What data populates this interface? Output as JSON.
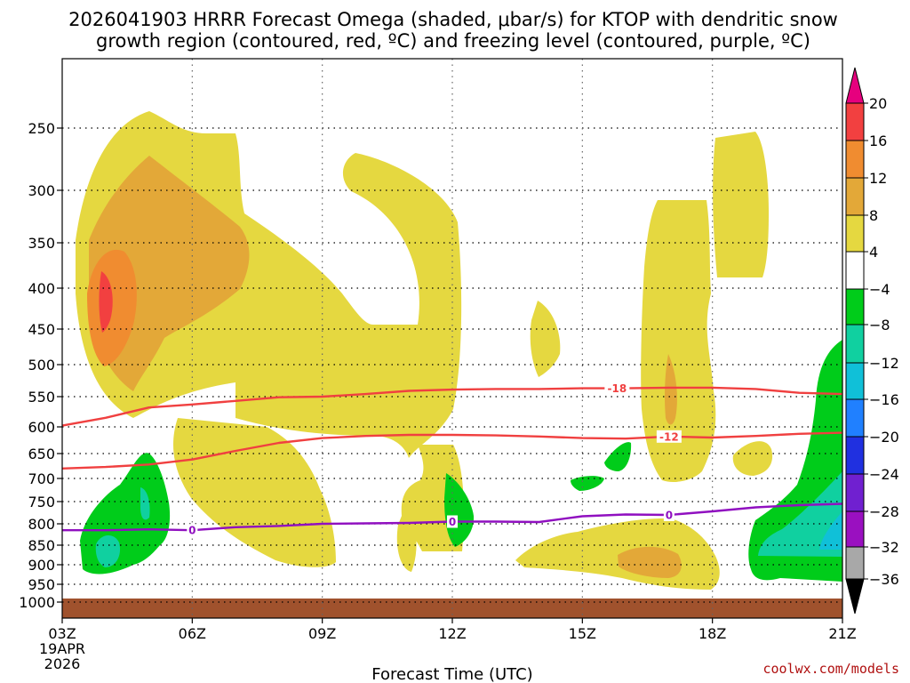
{
  "chart_data": {
    "type": "heatmap",
    "title_line1": "2026041903 HRRR Forecast Omega (shaded, μbar/s) for KTOP with dendritic snow",
    "title_line2": "growth region (contoured, red, ºC) and freezing level (contoured, purple, ºC)",
    "xlabel": "Forecast Time (UTC)",
    "x_hours": [
      3,
      6,
      9,
      12,
      15,
      18,
      21
    ],
    "x_tick_labels": [
      "03Z",
      "06Z",
      "09Z",
      "12Z",
      "15Z",
      "18Z",
      "21Z"
    ],
    "x_date_label_1": "19APR",
    "x_date_label_2": "2026",
    "x_range": [
      3,
      21
    ],
    "y_levels_hpa": [
      250,
      300,
      350,
      400,
      450,
      500,
      550,
      600,
      650,
      700,
      750,
      800,
      850,
      900,
      950,
      1000
    ],
    "y_tick_labels": [
      "250",
      "300",
      "350",
      "400",
      "450",
      "500",
      "550",
      "600",
      "650",
      "700",
      "750",
      "800",
      "850",
      "900",
      "950",
      "1000"
    ],
    "y_range_hpa": [
      200,
      1030
    ],
    "colorbar_levels": [
      20,
      16,
      12,
      8,
      4,
      -4,
      -8,
      -12,
      -16,
      -20,
      -24,
      -28,
      -32,
      -36
    ],
    "colorbar_labels": [
      "20",
      "16",
      "12",
      "8",
      "4",
      "−4",
      "−8",
      "−12",
      "−16",
      "−20",
      "−24",
      "−28",
      "−32",
      "−36"
    ],
    "colorbar_colors": [
      "#e6007e",
      "#f24040",
      "#f08c30",
      "#e3a838",
      "#e5d840",
      "#ffffff",
      "#00cc1a",
      "#10d0a0",
      "#10c0d8",
      "#2080ff",
      "#2030e0",
      "#7020d0",
      "#9a10c0",
      "#a8a8a8",
      "#000000"
    ],
    "shading_colors": {
      "yellow": "#e5d840",
      "gold": "#e3a838",
      "orange": "#f08c30",
      "red": "#f24040",
      "green": "#00cc1a",
      "teal": "#10d0a0",
      "cyan": "#10c0d8",
      "ground": "#a0522d"
    },
    "contours": [
      {
        "name": "dgz-minus18",
        "label": "-18",
        "color": "#f04040",
        "points": [
          [
            3,
            598
          ],
          [
            4,
            585
          ],
          [
            5,
            568
          ],
          [
            6,
            563
          ],
          [
            7,
            557
          ],
          [
            8,
            551
          ],
          [
            9,
            550
          ],
          [
            10,
            546
          ],
          [
            11,
            541
          ],
          [
            12,
            539
          ],
          [
            13,
            538
          ],
          [
            14,
            538
          ],
          [
            15,
            537
          ],
          [
            16,
            537
          ],
          [
            17,
            536
          ],
          [
            18,
            536
          ],
          [
            19,
            538
          ],
          [
            20,
            544
          ],
          [
            21,
            546
          ]
        ],
        "label_at_hour": 15.8
      },
      {
        "name": "dgz-minus12",
        "label": "-12",
        "color": "#f04040",
        "points": [
          [
            3,
            680
          ],
          [
            4,
            677
          ],
          [
            5,
            672
          ],
          [
            6,
            662
          ],
          [
            7,
            645
          ],
          [
            8,
            630
          ],
          [
            9,
            621
          ],
          [
            10,
            617
          ],
          [
            11,
            615
          ],
          [
            12,
            615
          ],
          [
            13,
            616
          ],
          [
            14,
            618
          ],
          [
            15,
            621
          ],
          [
            16,
            622
          ],
          [
            17,
            618
          ],
          [
            18,
            620
          ],
          [
            19,
            617
          ],
          [
            20,
            613
          ],
          [
            21,
            611
          ]
        ],
        "label_at_hour": 17.0
      },
      {
        "name": "freezing-level",
        "label": "0",
        "color": "#9010c0",
        "points": [
          [
            3,
            815
          ],
          [
            4,
            815
          ],
          [
            5,
            813
          ],
          [
            6,
            815
          ],
          [
            7,
            808
          ],
          [
            8,
            805
          ],
          [
            9,
            800
          ],
          [
            10,
            799
          ],
          [
            11,
            798
          ],
          [
            12,
            795
          ],
          [
            13,
            795
          ],
          [
            14,
            796
          ],
          [
            15,
            783
          ],
          [
            16,
            779
          ],
          [
            17,
            780
          ],
          [
            18,
            772
          ],
          [
            19,
            763
          ],
          [
            20,
            758
          ],
          [
            21,
            755
          ]
        ],
        "label_at_hours": [
          6.0,
          12.0,
          17.0
        ]
      }
    ]
  },
  "credit": "coolwx.com/models"
}
